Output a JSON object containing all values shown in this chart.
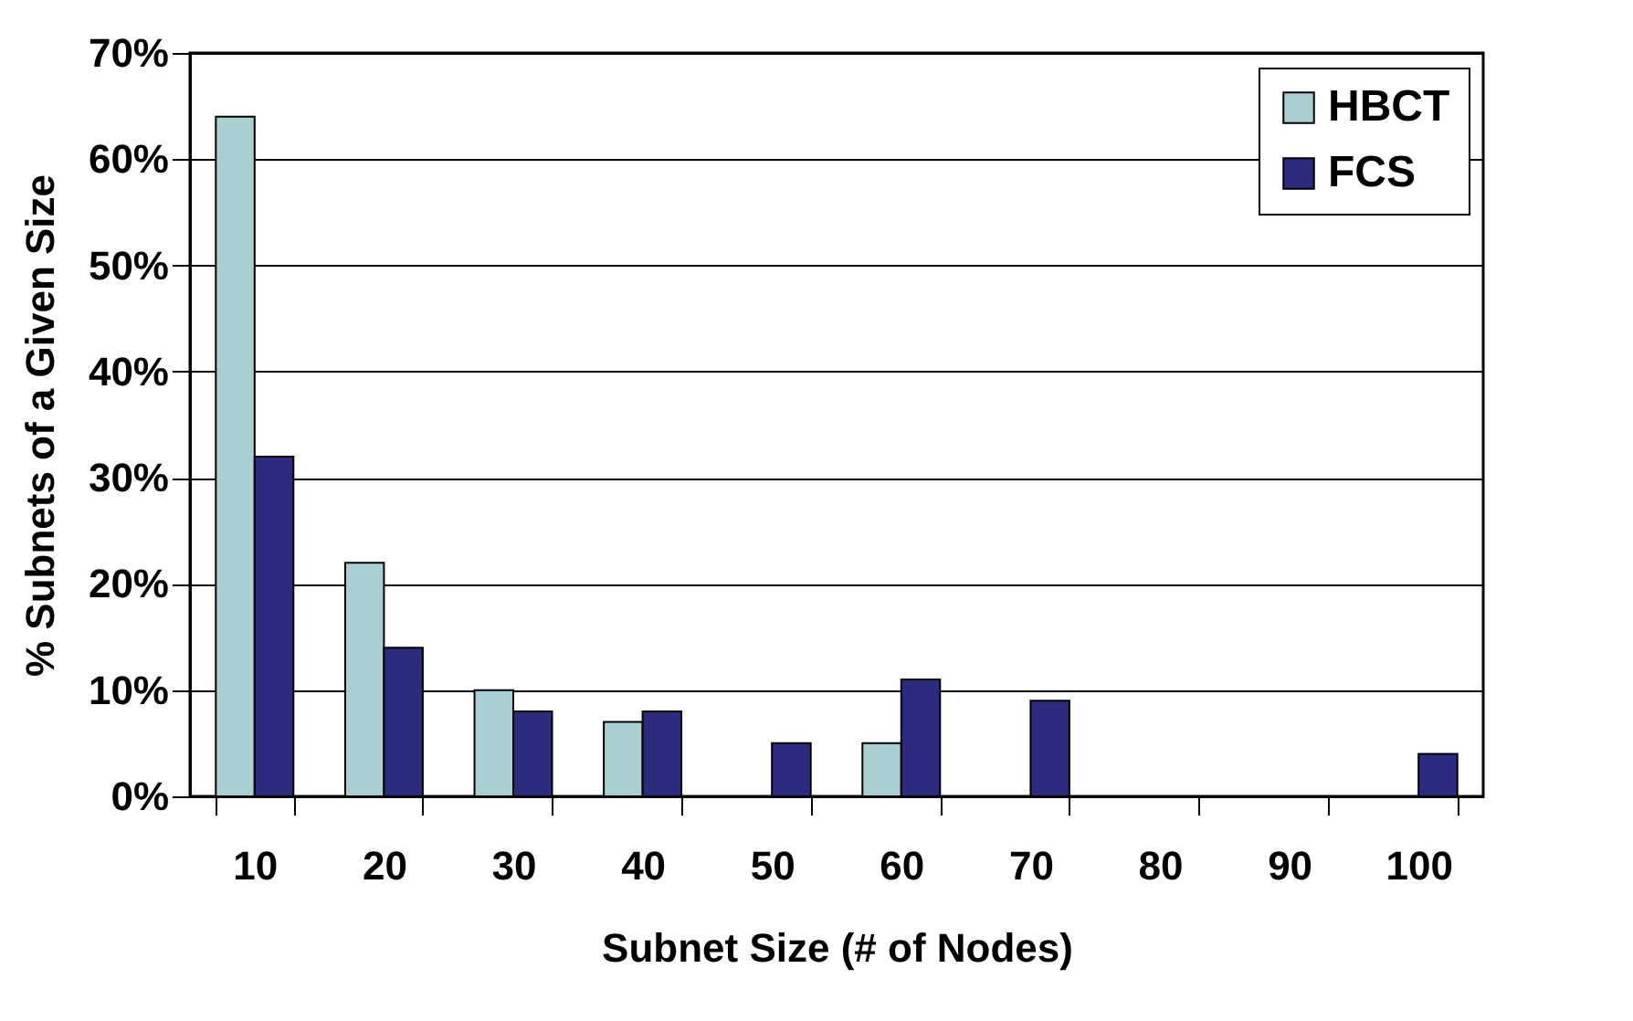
{
  "chart_data": {
    "type": "bar",
    "xlabel": "Subnet Size (# of Nodes)",
    "ylabel": "% Subnets of a Given Size",
    "categories": [
      "10",
      "20",
      "30",
      "40",
      "50",
      "60",
      "70",
      "80",
      "90",
      "100"
    ],
    "series": [
      {
        "name": "HBCT",
        "color": "#a9cfd3",
        "values": [
          64,
          22,
          10,
          7,
          null,
          5,
          null,
          null,
          null,
          null
        ]
      },
      {
        "name": "FCS",
        "color": "#2b2b80",
        "values": [
          32,
          14,
          8,
          8,
          5,
          11,
          9,
          null,
          null,
          4
        ]
      }
    ],
    "ylim": [
      0,
      70
    ],
    "yticks": [
      {
        "value": 0,
        "label": "0%"
      },
      {
        "value": 10,
        "label": "10%"
      },
      {
        "value": 20,
        "label": "20%"
      },
      {
        "value": 30,
        "label": "30%"
      },
      {
        "value": 40,
        "label": "40%"
      },
      {
        "value": 50,
        "label": "50%"
      },
      {
        "value": 60,
        "label": "60%"
      },
      {
        "value": 70,
        "label": "70%"
      }
    ],
    "grid": "y",
    "legend": "top right"
  }
}
